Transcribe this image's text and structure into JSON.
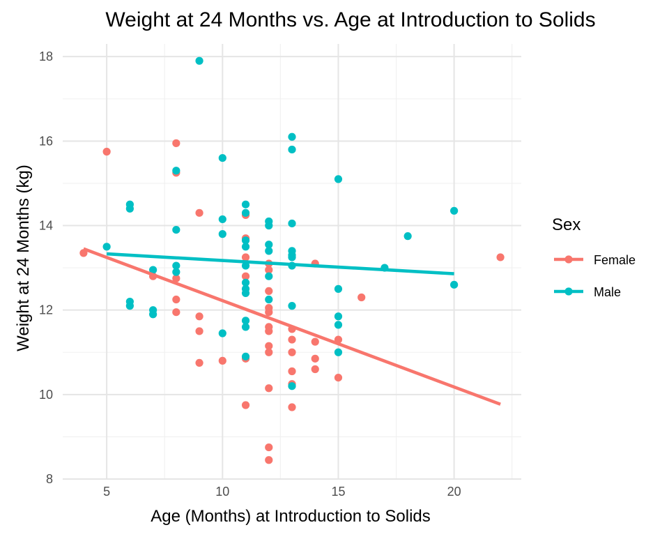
{
  "chart_data": {
    "type": "scatter",
    "title": "Weight at 24 Months vs. Age at Introduction to Solids",
    "xlabel": "Age (Months) at Introduction to Solids",
    "ylabel": "Weight at 24 Months (kg)",
    "xlim": [
      3.1,
      22.9
    ],
    "ylim": [
      8.0,
      18.3
    ],
    "x_ticks": [
      5,
      10,
      15,
      20
    ],
    "y_ticks": [
      8,
      10,
      12,
      14,
      16,
      18
    ],
    "grid": true,
    "legend": {
      "title": "Sex",
      "position": "right",
      "entries": [
        "Female",
        "Male"
      ]
    },
    "series": [
      {
        "name": "Female",
        "color": "#F8766D",
        "fit_line": {
          "x": [
            4,
            22
          ],
          "y": [
            13.45,
            9.77
          ]
        },
        "points": [
          [
            4,
            13.35
          ],
          [
            5,
            15.75
          ],
          [
            7,
            12.8
          ],
          [
            8,
            15.95
          ],
          [
            8,
            15.25
          ],
          [
            8,
            12.75
          ],
          [
            8,
            12.25
          ],
          [
            8,
            11.95
          ],
          [
            9,
            14.3
          ],
          [
            9,
            11.85
          ],
          [
            9,
            11.5
          ],
          [
            9,
            10.75
          ],
          [
            10,
            10.8
          ],
          [
            11,
            14.25
          ],
          [
            11,
            13.7
          ],
          [
            11,
            13.25
          ],
          [
            11,
            12.8
          ],
          [
            11,
            10.85
          ],
          [
            11,
            9.75
          ],
          [
            12,
            13.1
          ],
          [
            12,
            12.95
          ],
          [
            12,
            12.45
          ],
          [
            12,
            12.05
          ],
          [
            12,
            11.95
          ],
          [
            12,
            11.6
          ],
          [
            12,
            11.5
          ],
          [
            12,
            11.15
          ],
          [
            12,
            11.0
          ],
          [
            12,
            10.15
          ],
          [
            12,
            8.75
          ],
          [
            12,
            8.45
          ],
          [
            13,
            11.55
          ],
          [
            13,
            11.3
          ],
          [
            13,
            11.0
          ],
          [
            13,
            10.55
          ],
          [
            13,
            10.25
          ],
          [
            13,
            9.7
          ],
          [
            14,
            13.1
          ],
          [
            14,
            11.25
          ],
          [
            14,
            10.85
          ],
          [
            14,
            10.6
          ],
          [
            15,
            11.3
          ],
          [
            15,
            10.4
          ],
          [
            16,
            12.3
          ],
          [
            22,
            13.25
          ]
        ]
      },
      {
        "name": "Male",
        "color": "#00BFC4",
        "fit_line": {
          "x": [
            5,
            20
          ],
          "y": [
            13.33,
            12.86
          ]
        },
        "points": [
          [
            5,
            13.5
          ],
          [
            6,
            14.5
          ],
          [
            6,
            14.4
          ],
          [
            6,
            12.2
          ],
          [
            6,
            12.1
          ],
          [
            7,
            12.95
          ],
          [
            7,
            12.0
          ],
          [
            7,
            11.9
          ],
          [
            8,
            15.3
          ],
          [
            8,
            13.9
          ],
          [
            8,
            13.05
          ],
          [
            8,
            12.9
          ],
          [
            9,
            17.9
          ],
          [
            10,
            15.6
          ],
          [
            10,
            14.15
          ],
          [
            10,
            13.8
          ],
          [
            10,
            11.45
          ],
          [
            11,
            14.5
          ],
          [
            11,
            14.3
          ],
          [
            11,
            13.65
          ],
          [
            11,
            13.5
          ],
          [
            11,
            13.05
          ],
          [
            11,
            12.65
          ],
          [
            11,
            12.5
          ],
          [
            11,
            12.4
          ],
          [
            11,
            11.75
          ],
          [
            11,
            11.6
          ],
          [
            11,
            10.9
          ],
          [
            12,
            14.1
          ],
          [
            12,
            14.0
          ],
          [
            12,
            13.55
          ],
          [
            12,
            13.4
          ],
          [
            12,
            12.8
          ],
          [
            12,
            12.25
          ],
          [
            13,
            16.1
          ],
          [
            13,
            15.8
          ],
          [
            13,
            14.05
          ],
          [
            13,
            13.4
          ],
          [
            13,
            13.3
          ],
          [
            13,
            13.25
          ],
          [
            13,
            13.05
          ],
          [
            13,
            12.1
          ],
          [
            13,
            10.2
          ],
          [
            15,
            15.1
          ],
          [
            15,
            12.5
          ],
          [
            15,
            11.85
          ],
          [
            15,
            11.65
          ],
          [
            15,
            11.0
          ],
          [
            17,
            13.0
          ],
          [
            18,
            13.75
          ],
          [
            20,
            14.35
          ],
          [
            20,
            12.6
          ]
        ]
      }
    ]
  }
}
